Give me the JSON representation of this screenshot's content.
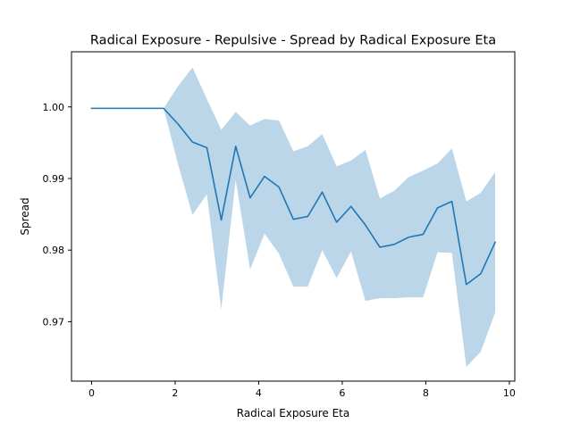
{
  "chart_data": {
    "type": "line",
    "title": "Radical Exposure - Repulsive - Spread by Radical Exposure Eta",
    "xlabel": "Radical Exposure Eta",
    "ylabel": "Spread",
    "xlim": [
      -0.48,
      10.13
    ],
    "ylim": [
      0.9617,
      1.0077
    ],
    "xticks": [
      0,
      2,
      4,
      6,
      8,
      10
    ],
    "xtick_labels": [
      "0",
      "2",
      "4",
      "6",
      "8",
      "10"
    ],
    "yticks": [
      0.97,
      0.98,
      0.99,
      1.0
    ],
    "ytick_labels": [
      "0.97",
      "0.98",
      "0.99",
      "1.00"
    ],
    "grid": false,
    "colors": {
      "line": "#1f77b4",
      "band": "#1f77b4"
    },
    "series": [
      {
        "x": [
          0,
          0.345,
          0.69,
          1.035,
          1.38,
          1.725,
          2.07,
          2.415,
          2.76,
          3.105,
          3.45,
          3.795,
          4.14,
          4.485,
          4.83,
          5.175,
          5.52,
          5.865,
          6.21,
          6.555,
          6.9,
          7.245,
          7.59,
          7.935,
          8.28,
          8.625,
          8.97,
          9.315,
          9.66
        ],
        "values": [
          0.9998,
          0.9998,
          0.9998,
          0.9998,
          0.9998,
          0.9998,
          0.9976,
          0.9951,
          0.9943,
          0.9842,
          0.9945,
          0.9873,
          0.9903,
          0.9888,
          0.9843,
          0.9847,
          0.9881,
          0.9839,
          0.9861,
          0.9835,
          0.9804,
          0.9808,
          0.9818,
          0.9822,
          0.9859,
          0.9868,
          0.9752,
          0.9767,
          0.9811
        ],
        "lower": [
          0.9998,
          0.9998,
          0.9998,
          0.9998,
          0.9998,
          0.9998,
          0.992,
          0.9849,
          0.9878,
          0.9717,
          0.9898,
          0.9773,
          0.9823,
          0.9795,
          0.9749,
          0.9749,
          0.98,
          0.9761,
          0.9798,
          0.9729,
          0.9733,
          0.9733,
          0.9734,
          0.9734,
          0.9797,
          0.9796,
          0.9637,
          0.9658,
          0.9713
        ],
        "upper": [
          0.9998,
          0.9998,
          0.9998,
          0.9998,
          0.9998,
          0.9998,
          1.0029,
          1.0055,
          1.0011,
          0.9968,
          0.9993,
          0.9974,
          0.9983,
          0.9981,
          0.9938,
          0.9945,
          0.9962,
          0.9917,
          0.9925,
          0.994,
          0.9872,
          0.9883,
          0.9902,
          0.9911,
          0.9921,
          0.9942,
          0.9868,
          0.988,
          0.9909
        ]
      }
    ]
  }
}
